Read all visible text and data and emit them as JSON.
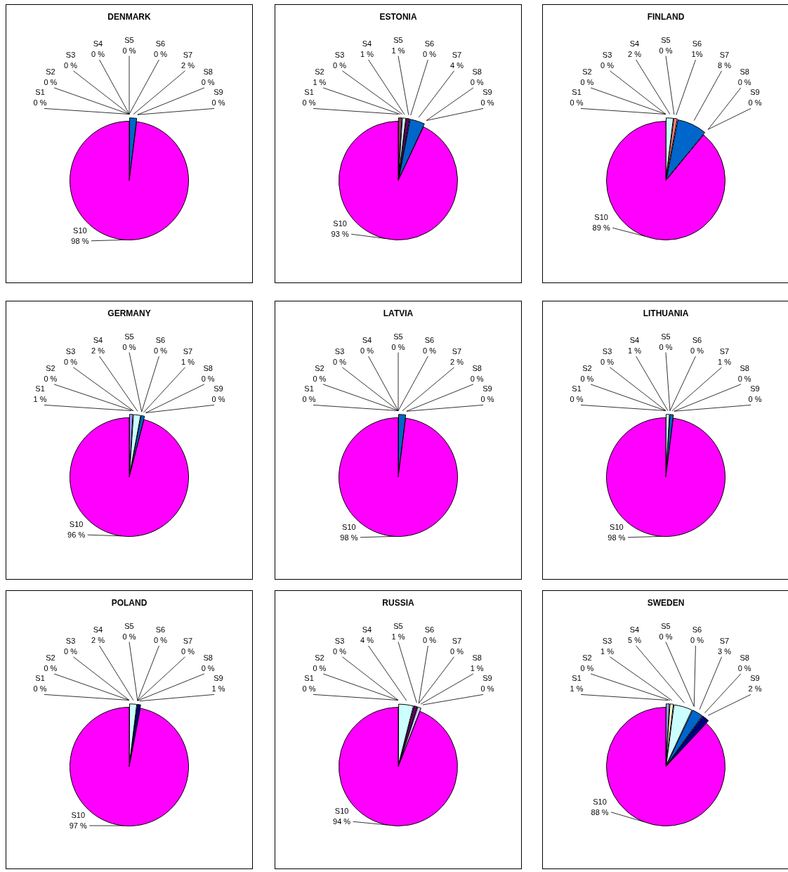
{
  "chart_data": [
    {
      "type": "pie",
      "title": "DENMARK",
      "categories": [
        "S1",
        "S2",
        "S3",
        "S4",
        "S5",
        "S6",
        "S7",
        "S8",
        "S9",
        "S10"
      ],
      "values": [
        0,
        0,
        0,
        0,
        0,
        0,
        2,
        0,
        0,
        98
      ],
      "value_labels": [
        "0 %",
        "0 %",
        "0 %",
        "0 %",
        "0 %",
        "0 %",
        "2 %",
        "0 %",
        "0 %",
        "98 %"
      ],
      "colors": [
        "#9999ff",
        "#993366",
        "#ffffcc",
        "#ccffff",
        "#660066",
        "#ff8080",
        "#0066cc",
        "#ccccff",
        "#000080",
        "#ff00ff"
      ]
    },
    {
      "type": "pie",
      "title": "ESTONIA",
      "categories": [
        "S1",
        "S2",
        "S3",
        "S4",
        "S5",
        "S6",
        "S7",
        "S8",
        "S9",
        "S10"
      ],
      "values": [
        0,
        1,
        0,
        1,
        1,
        0,
        4,
        0,
        0,
        93
      ],
      "value_labels": [
        "0 %",
        "1 %",
        "0 %",
        "1 %",
        "1 %",
        "0 %",
        "4 %",
        "0 %",
        "0 %",
        "93 %"
      ],
      "colors": [
        "#9999ff",
        "#993366",
        "#ffffcc",
        "#ccffff",
        "#660066",
        "#ff8080",
        "#0066cc",
        "#ccccff",
        "#000080",
        "#ff00ff"
      ]
    },
    {
      "type": "pie",
      "title": "FINLAND",
      "categories": [
        "S1",
        "S2",
        "S3",
        "S4",
        "S5",
        "S6",
        "S7",
        "S8",
        "S9",
        "S10"
      ],
      "values": [
        0,
        0,
        0,
        2,
        0,
        1,
        8,
        0,
        0,
        89
      ],
      "value_labels": [
        "0 %",
        "0 %",
        "0 %",
        "2 %",
        "0 %",
        "1%",
        "8 %",
        "0 %",
        "0 %",
        "89 %"
      ],
      "colors": [
        "#9999ff",
        "#993366",
        "#ffffcc",
        "#ccffff",
        "#660066",
        "#ff8080",
        "#0066cc",
        "#ccccff",
        "#000080",
        "#ff00ff"
      ]
    },
    {
      "type": "pie",
      "title": "GERMANY",
      "categories": [
        "S1",
        "S2",
        "S3",
        "S4",
        "S5",
        "S6",
        "S7",
        "S8",
        "S9",
        "S10"
      ],
      "values": [
        1,
        0,
        0,
        2,
        0,
        0,
        1,
        0,
        0,
        96
      ],
      "value_labels": [
        "1 %",
        "0 %",
        "0 %",
        "2 %",
        "0 %",
        "0 %",
        "1 %",
        "0 %",
        "0 %",
        "96 %"
      ],
      "colors": [
        "#9999ff",
        "#993366",
        "#ffffcc",
        "#ccffff",
        "#660066",
        "#ff8080",
        "#0066cc",
        "#ccccff",
        "#000080",
        "#ff00ff"
      ]
    },
    {
      "type": "pie",
      "title": "LATVIA",
      "categories": [
        "S1",
        "S2",
        "S3",
        "S4",
        "S5",
        "S6",
        "S7",
        "S8",
        "S9",
        "S10"
      ],
      "values": [
        0,
        0,
        0,
        0,
        0,
        0,
        2,
        0,
        0,
        98
      ],
      "value_labels": [
        "0 %",
        "0 %",
        "0 %",
        "0 %",
        "0 %",
        "0 %",
        "2 %",
        "0 %",
        "0 %",
        "98 %"
      ],
      "colors": [
        "#9999ff",
        "#993366",
        "#ffffcc",
        "#ccffff",
        "#660066",
        "#ff8080",
        "#0066cc",
        "#ccccff",
        "#000080",
        "#ff00ff"
      ]
    },
    {
      "type": "pie",
      "title": "LITHUANIA",
      "categories": [
        "S1",
        "S2",
        "S3",
        "S4",
        "S5",
        "S6",
        "S7",
        "S8",
        "S9",
        "S10"
      ],
      "values": [
        0,
        0,
        0,
        1,
        0,
        0,
        1,
        0,
        0,
        98
      ],
      "value_labels": [
        "0 %",
        "0 %",
        "0 %",
        "1 %",
        "0 %",
        "0 %",
        "1 %",
        "0 %",
        "0 %",
        "98 %"
      ],
      "colors": [
        "#9999ff",
        "#993366",
        "#ffffcc",
        "#ccffff",
        "#660066",
        "#ff8080",
        "#0066cc",
        "#ccccff",
        "#000080",
        "#ff00ff"
      ]
    },
    {
      "type": "pie",
      "title": "POLAND",
      "categories": [
        "S1",
        "S2",
        "S3",
        "S4",
        "S5",
        "S6",
        "S7",
        "S8",
        "S9",
        "S10"
      ],
      "values": [
        0,
        0,
        0,
        2,
        0,
        0,
        0,
        0,
        1,
        97
      ],
      "value_labels": [
        "0 %",
        "0 %",
        "0 %",
        "2 %",
        "0 %",
        "0 %",
        "0 %",
        "0 %",
        "1 %",
        "97 %"
      ],
      "colors": [
        "#9999ff",
        "#993366",
        "#ffffcc",
        "#ccffff",
        "#660066",
        "#ff8080",
        "#0066cc",
        "#ccccff",
        "#000080",
        "#ff00ff"
      ]
    },
    {
      "type": "pie",
      "title": "RUSSIA",
      "categories": [
        "S1",
        "S2",
        "S3",
        "S4",
        "S5",
        "S6",
        "S7",
        "S8",
        "S9",
        "S10"
      ],
      "values": [
        0,
        0,
        0,
        4,
        1,
        0,
        0,
        1,
        0,
        94
      ],
      "value_labels": [
        "0 %",
        "0 %",
        "0 %",
        "4 %",
        "1 %",
        "0 %",
        "0 %",
        "1 %",
        "0 %",
        "94 %"
      ],
      "colors": [
        "#9999ff",
        "#993366",
        "#ffffcc",
        "#ccffff",
        "#660066",
        "#ff8080",
        "#0066cc",
        "#ccccff",
        "#000080",
        "#ff00ff"
      ]
    },
    {
      "type": "pie",
      "title": "SWEDEN",
      "categories": [
        "S1",
        "S2",
        "S3",
        "S4",
        "S5",
        "S6",
        "S7",
        "S8",
        "S9",
        "S10"
      ],
      "values": [
        1,
        0,
        1,
        5,
        0,
        0,
        3,
        0,
        2,
        88
      ],
      "value_labels": [
        "1 %",
        "0 %",
        "1 %",
        "5 %",
        "0 %",
        "0 %",
        "3 %",
        "0 %",
        "2 %",
        "88 %"
      ],
      "colors": [
        "#9999ff",
        "#993366",
        "#ffffcc",
        "#ccffff",
        "#660066",
        "#ff8080",
        "#0066cc",
        "#ccccff",
        "#000080",
        "#ff00ff"
      ]
    }
  ]
}
